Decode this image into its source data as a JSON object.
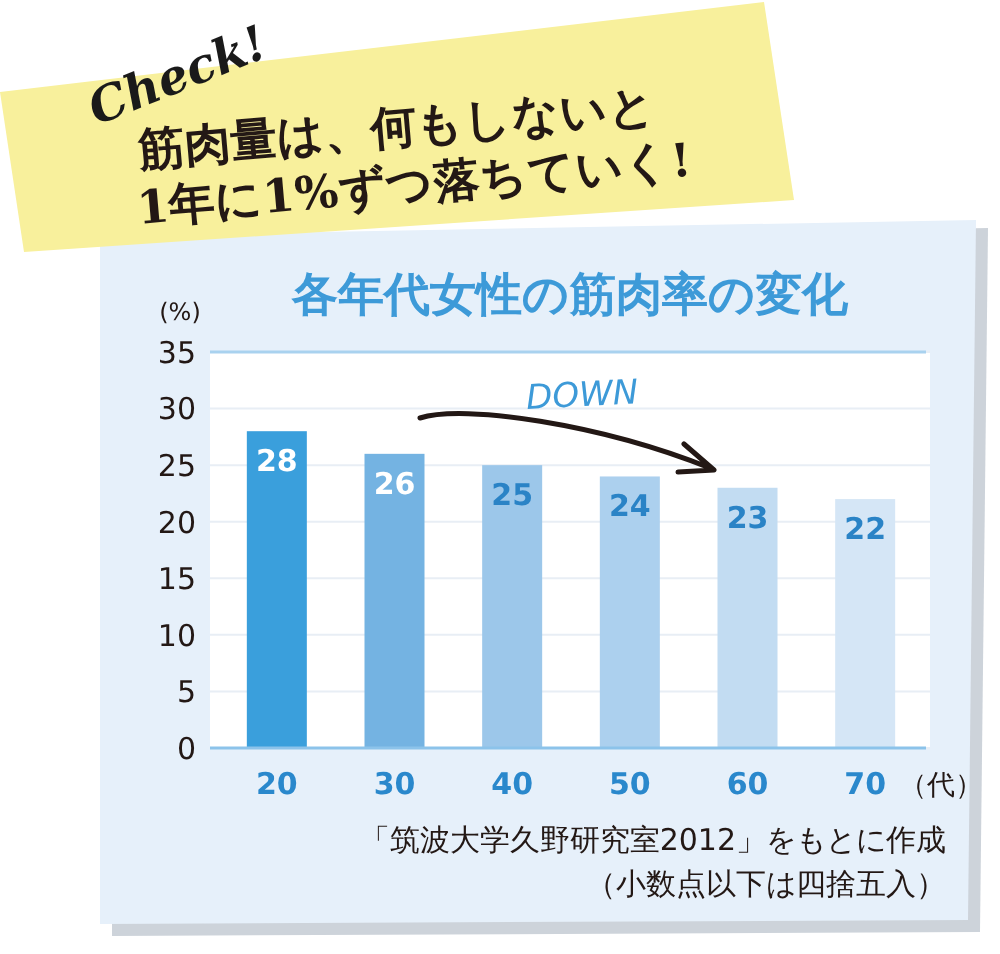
{
  "chart_data": {
    "type": "bar",
    "title": "各年代女性の筋肉率の変化",
    "xlabel": "（代）",
    "ylabel": "(%)",
    "categories": [
      "20",
      "30",
      "40",
      "50",
      "60",
      "70"
    ],
    "values": [
      28,
      26,
      25,
      24,
      23,
      22
    ],
    "colors": [
      "#3a9fdc",
      "#74b3e2",
      "#9cc7ea",
      "#acd0ee",
      "#c2dcf2",
      "#d5e6f6"
    ],
    "ylim": [
      0,
      35
    ],
    "yticks": [
      0,
      5,
      10,
      15,
      20,
      25,
      30,
      35
    ],
    "grid": "y",
    "data_labels": true,
    "annotations": [
      "Check!",
      "筋肉量は、何もしないと\n1年に1%ずつ落ちていく!",
      "DOWN",
      "「筑波大学久野研究室2012」をもとに作成",
      "（小数点以下は四捨五入）"
    ]
  }
}
